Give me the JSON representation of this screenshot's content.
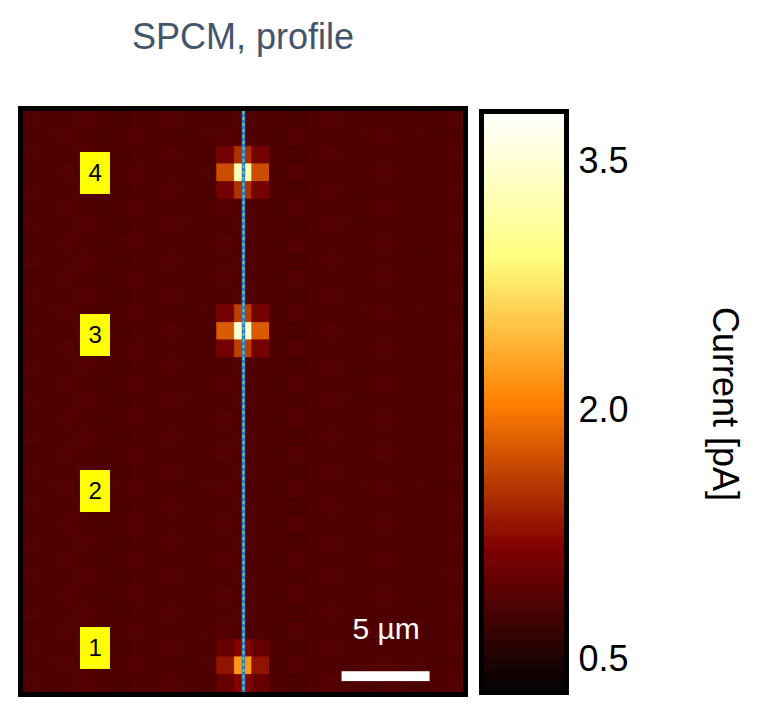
{
  "chart_data": {
    "type": "heatmap",
    "title": "SPCM, profile",
    "xlim": [
      0,
      25
    ],
    "ylim": [
      0,
      33
    ],
    "tick_labels": false,
    "cells": [
      [
        0.85,
        0.82,
        0.85,
        0.88,
        0.85,
        0.82,
        0.85,
        0.85,
        0.88,
        0.85,
        0.82,
        0.85,
        0.88,
        0.85,
        0.85,
        0.82,
        0.85,
        0.88,
        0.85,
        0.82,
        0.85,
        0.85,
        0.82,
        0.85,
        0.88
      ],
      [
        0.82,
        0.85,
        0.88,
        0.85,
        0.82,
        0.85,
        0.88,
        0.85,
        0.85,
        0.82,
        0.85,
        0.88,
        0.85,
        0.85,
        0.82,
        0.88,
        0.85,
        0.85,
        0.82,
        0.85,
        0.88,
        0.85,
        0.85,
        0.82,
        0.85
      ],
      [
        0.85,
        0.82,
        0.85,
        0.88,
        0.85,
        0.82,
        0.85,
        0.85,
        0.88,
        0.85,
        0.82,
        1.1,
        1.5,
        1.1,
        0.85,
        0.82,
        0.85,
        0.88,
        0.85,
        0.82,
        0.85,
        0.85,
        0.82,
        0.85,
        0.88
      ],
      [
        0.82,
        0.85,
        0.88,
        0.85,
        0.82,
        0.85,
        0.88,
        0.85,
        0.85,
        0.82,
        0.85,
        1.7,
        3.3,
        1.7,
        0.82,
        0.88,
        0.85,
        0.85,
        0.82,
        0.85,
        0.88,
        0.85,
        0.85,
        0.82,
        0.85
      ],
      [
        0.85,
        0.82,
        0.85,
        0.88,
        0.85,
        0.82,
        0.85,
        0.85,
        0.88,
        0.85,
        0.82,
        1.1,
        1.5,
        1.1,
        0.85,
        0.82,
        0.85,
        0.88,
        0.85,
        0.82,
        0.85,
        0.85,
        0.82,
        0.85,
        0.88
      ],
      [
        0.82,
        0.85,
        0.88,
        0.85,
        0.82,
        0.85,
        0.88,
        0.85,
        0.85,
        0.82,
        0.85,
        0.88,
        0.85,
        0.85,
        0.82,
        0.88,
        0.85,
        0.85,
        0.82,
        0.85,
        0.88,
        0.85,
        0.85,
        0.82,
        0.85
      ],
      [
        0.85,
        0.82,
        0.85,
        0.88,
        0.85,
        0.82,
        0.85,
        0.85,
        0.88,
        0.85,
        0.82,
        0.85,
        0.88,
        0.85,
        0.85,
        0.82,
        0.85,
        0.88,
        0.85,
        0.82,
        0.85,
        0.85,
        0.82,
        0.85,
        0.88
      ],
      [
        0.82,
        0.85,
        0.88,
        0.85,
        0.82,
        0.85,
        0.88,
        0.85,
        0.85,
        0.82,
        0.85,
        0.88,
        0.85,
        0.85,
        0.82,
        0.88,
        0.85,
        0.85,
        0.82,
        0.85,
        0.88,
        0.85,
        0.85,
        0.82,
        0.85
      ],
      [
        0.85,
        0.82,
        0.85,
        0.88,
        0.85,
        0.82,
        0.85,
        0.85,
        0.88,
        0.85,
        0.82,
        0.85,
        0.88,
        0.85,
        0.85,
        0.82,
        0.85,
        0.88,
        0.85,
        0.82,
        0.85,
        0.85,
        0.82,
        0.85,
        0.88
      ],
      [
        0.82,
        0.85,
        0.88,
        0.85,
        0.82,
        0.85,
        0.88,
        0.85,
        0.85,
        0.82,
        0.85,
        0.88,
        0.85,
        0.85,
        0.82,
        0.88,
        0.85,
        0.85,
        0.82,
        0.85,
        0.88,
        0.85,
        0.85,
        0.82,
        0.85
      ],
      [
        0.85,
        0.82,
        0.85,
        0.88,
        0.85,
        0.82,
        0.85,
        0.85,
        0.88,
        0.85,
        0.82,
        0.85,
        0.88,
        0.85,
        0.85,
        0.82,
        0.85,
        0.88,
        0.85,
        0.82,
        0.85,
        0.85,
        0.82,
        0.85,
        0.88
      ],
      [
        0.82,
        0.85,
        0.88,
        0.85,
        0.82,
        0.85,
        0.88,
        0.85,
        0.85,
        0.82,
        0.85,
        1.1,
        1.6,
        1.1,
        0.82,
        0.88,
        0.85,
        0.85,
        0.82,
        0.85,
        0.88,
        0.85,
        0.85,
        0.82,
        0.85
      ],
      [
        0.85,
        0.82,
        0.85,
        0.88,
        0.85,
        0.82,
        0.85,
        0.85,
        0.88,
        0.85,
        0.82,
        1.8,
        3.5,
        1.8,
        0.85,
        0.82,
        0.85,
        0.88,
        0.85,
        0.82,
        0.85,
        0.85,
        0.82,
        0.85,
        0.88
      ],
      [
        0.82,
        0.85,
        0.88,
        0.85,
        0.82,
        0.85,
        0.88,
        0.85,
        0.85,
        0.82,
        0.85,
        1.1,
        1.6,
        1.1,
        0.82,
        0.88,
        0.85,
        0.85,
        0.82,
        0.85,
        0.88,
        0.85,
        0.85,
        0.82,
        0.85
      ],
      [
        0.85,
        0.82,
        0.85,
        0.88,
        0.85,
        0.82,
        0.85,
        0.85,
        0.88,
        0.85,
        0.82,
        0.85,
        0.88,
        0.85,
        0.85,
        0.82,
        0.85,
        0.88,
        0.85,
        0.82,
        0.85,
        0.85,
        0.82,
        0.85,
        0.88
      ],
      [
        0.82,
        0.85,
        0.88,
        0.85,
        0.82,
        0.85,
        0.88,
        0.85,
        0.85,
        0.82,
        0.85,
        0.88,
        0.85,
        0.85,
        0.82,
        0.88,
        0.85,
        0.85,
        0.82,
        0.85,
        0.88,
        0.85,
        0.85,
        0.82,
        0.85
      ],
      [
        0.85,
        0.82,
        0.85,
        0.88,
        0.85,
        0.82,
        0.85,
        0.85,
        0.88,
        0.85,
        0.82,
        0.85,
        0.88,
        0.85,
        0.85,
        0.82,
        0.85,
        0.88,
        0.85,
        0.82,
        0.85,
        0.85,
        0.82,
        0.85,
        0.88
      ],
      [
        0.82,
        0.85,
        0.88,
        0.85,
        0.82,
        0.85,
        0.88,
        0.85,
        0.85,
        0.82,
        0.85,
        0.88,
        0.85,
        0.85,
        0.82,
        0.88,
        0.85,
        0.85,
        0.82,
        0.85,
        0.88,
        0.85,
        0.85,
        0.82,
        0.85
      ],
      [
        0.85,
        0.82,
        0.85,
        0.88,
        0.85,
        0.82,
        0.85,
        0.85,
        0.88,
        0.85,
        0.82,
        0.85,
        0.88,
        0.85,
        0.85,
        0.82,
        0.85,
        0.88,
        0.85,
        0.82,
        0.85,
        0.85,
        0.82,
        0.85,
        0.88
      ],
      [
        0.82,
        0.85,
        0.88,
        0.85,
        0.82,
        0.85,
        0.88,
        0.85,
        0.85,
        0.82,
        0.85,
        0.88,
        0.85,
        0.85,
        0.82,
        0.88,
        0.85,
        0.85,
        0.82,
        0.85,
        0.88,
        0.85,
        0.85,
        0.82,
        0.85
      ],
      [
        0.85,
        0.82,
        0.85,
        0.88,
        0.85,
        0.82,
        0.85,
        0.85,
        0.88,
        0.85,
        0.82,
        0.85,
        0.88,
        0.85,
        0.85,
        0.82,
        0.85,
        0.88,
        0.85,
        0.82,
        0.85,
        0.85,
        0.82,
        0.85,
        0.88
      ],
      [
        0.82,
        0.85,
        0.88,
        0.85,
        0.82,
        0.85,
        0.88,
        0.85,
        0.85,
        0.82,
        0.85,
        0.88,
        0.85,
        0.85,
        0.82,
        0.88,
        0.85,
        0.85,
        0.82,
        0.85,
        0.88,
        0.85,
        0.85,
        0.82,
        0.85
      ],
      [
        0.85,
        0.82,
        0.85,
        0.88,
        0.85,
        0.82,
        0.85,
        0.85,
        0.88,
        0.85,
        0.82,
        0.85,
        0.88,
        0.85,
        0.85,
        0.82,
        0.85,
        0.88,
        0.85,
        0.82,
        0.85,
        0.85,
        0.82,
        0.85,
        0.88
      ],
      [
        0.82,
        0.85,
        0.88,
        0.85,
        0.82,
        0.85,
        0.88,
        0.85,
        0.85,
        0.82,
        0.85,
        0.88,
        0.85,
        0.85,
        0.82,
        0.88,
        0.85,
        0.85,
        0.82,
        0.85,
        0.88,
        0.85,
        0.85,
        0.82,
        0.85
      ],
      [
        0.85,
        0.82,
        0.85,
        0.88,
        0.85,
        0.82,
        0.85,
        0.85,
        0.88,
        0.85,
        0.82,
        0.85,
        0.88,
        0.85,
        0.85,
        0.82,
        0.85,
        0.88,
        0.85,
        0.82,
        0.85,
        0.85,
        0.82,
        0.85,
        0.88
      ],
      [
        0.82,
        0.85,
        0.88,
        0.85,
        0.82,
        0.85,
        0.88,
        0.85,
        0.85,
        0.82,
        0.85,
        0.88,
        0.85,
        0.85,
        0.82,
        0.88,
        0.85,
        0.85,
        0.82,
        0.85,
        0.88,
        0.85,
        0.85,
        0.82,
        0.85
      ],
      [
        0.85,
        0.82,
        0.85,
        0.88,
        0.85,
        0.82,
        0.85,
        0.85,
        0.88,
        0.85,
        0.82,
        0.85,
        0.88,
        0.85,
        0.85,
        0.82,
        0.85,
        0.88,
        0.85,
        0.82,
        0.85,
        0.85,
        0.82,
        0.85,
        0.88
      ],
      [
        0.82,
        0.85,
        0.88,
        0.85,
        0.82,
        0.85,
        0.88,
        0.85,
        0.85,
        0.82,
        0.85,
        0.88,
        0.85,
        0.85,
        0.82,
        0.88,
        0.85,
        0.85,
        0.82,
        0.85,
        0.88,
        0.85,
        0.85,
        0.82,
        0.85
      ],
      [
        0.85,
        0.82,
        0.85,
        0.88,
        0.85,
        0.82,
        0.85,
        0.85,
        0.88,
        0.85,
        0.82,
        0.85,
        0.88,
        0.85,
        0.85,
        0.82,
        0.85,
        0.88,
        0.85,
        0.82,
        0.85,
        0.85,
        0.82,
        0.85,
        0.88
      ],
      [
        0.82,
        0.85,
        0.88,
        0.85,
        0.82,
        0.85,
        0.88,
        0.85,
        0.85,
        0.82,
        0.85,
        0.88,
        0.85,
        0.85,
        0.82,
        0.88,
        0.85,
        0.85,
        0.82,
        0.85,
        0.88,
        0.85,
        0.85,
        0.82,
        0.85
      ],
      [
        0.85,
        0.82,
        0.85,
        0.88,
        0.85,
        0.82,
        0.85,
        0.85,
        0.88,
        0.85,
        0.82,
        1.0,
        1.2,
        1.0,
        0.85,
        0.82,
        0.85,
        0.88,
        0.85,
        0.82,
        0.85,
        0.85,
        0.82,
        0.85,
        0.88
      ],
      [
        0.82,
        0.85,
        0.88,
        0.85,
        0.82,
        0.85,
        0.88,
        0.85,
        0.85,
        0.82,
        0.85,
        1.3,
        2.2,
        1.3,
        0.82,
        0.88,
        0.85,
        0.85,
        0.82,
        0.85,
        0.88,
        0.85,
        0.85,
        0.82,
        0.85
      ],
      [
        0.85,
        0.82,
        0.85,
        0.88,
        0.85,
        0.82,
        0.85,
        0.85,
        0.88,
        0.85,
        0.82,
        1.0,
        1.2,
        1.0,
        0.85,
        0.82,
        0.85,
        0.88,
        0.85,
        0.82,
        0.85,
        0.85,
        0.82,
        0.85,
        0.88
      ]
    ],
    "colorbar": {
      "label": "Current [pA]",
      "range": [
        0.3,
        3.8
      ],
      "ticks": [
        0.5,
        {
          "value": 2,
          "label": "2.0"
        },
        3.5
      ]
    },
    "profile_line": {
      "x": 12.5
    },
    "annotations": [
      {
        "text": "4",
        "x": 4.1,
        "y": 3.5
      },
      {
        "text": "3",
        "x": 4.1,
        "y": 12.7
      },
      {
        "text": "2",
        "x": 4.1,
        "y": 21.6
      },
      {
        "text": "1",
        "x": 4.1,
        "y": 30.5
      }
    ],
    "scale_bar": {
      "label": "5 µm",
      "length": 5
    }
  }
}
